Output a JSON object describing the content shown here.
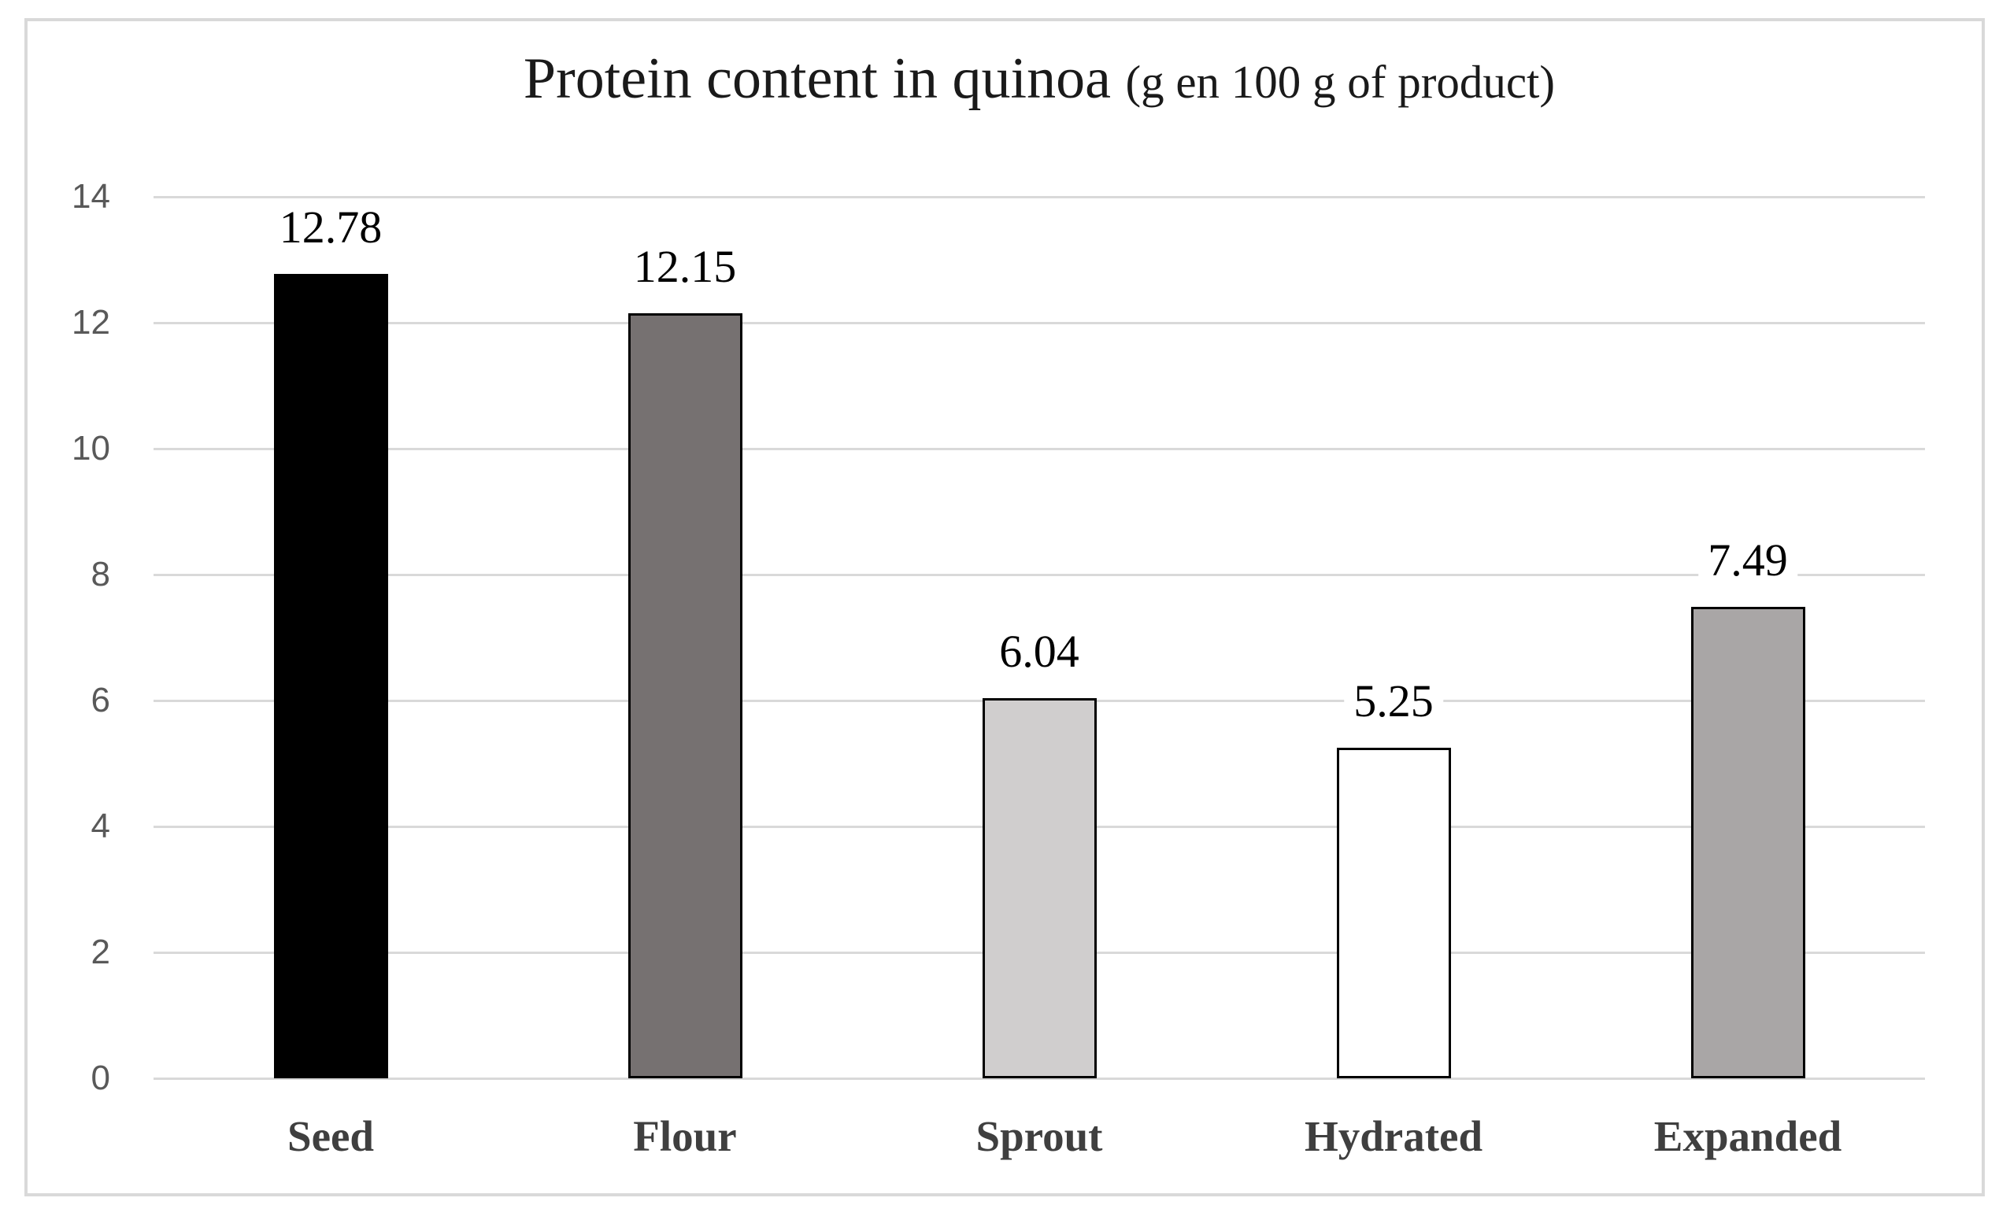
{
  "chart_data": {
    "type": "bar",
    "title_main": "Protein content in quinoa ",
    "title_paren": "(g en 100 g of product)",
    "categories": [
      "Seed",
      "Flour",
      "Sprout",
      "Hydrated",
      "Expanded"
    ],
    "values": [
      12.78,
      12.15,
      6.04,
      5.25,
      7.49
    ],
    "data_labels": [
      "12.78",
      "12.15",
      "6.04",
      "5.25",
      "7.49"
    ],
    "bar_fills": [
      "#000000",
      "#767171",
      "#d0cece",
      "#ffffff",
      "#a9a6a6"
    ],
    "bar_border_color": "#000000",
    "y_ticks": [
      "0",
      "2",
      "4",
      "6",
      "8",
      "10",
      "12",
      "14"
    ],
    "y_tick_values": [
      0,
      2,
      4,
      6,
      8,
      10,
      12,
      14
    ],
    "ylim": [
      0,
      14
    ],
    "xlabel": "",
    "ylabel": "",
    "grid": true,
    "legend": false,
    "gridline_color": "#d9d9d9",
    "tick_label_color": "#595959",
    "category_label_color": "#3f3f3f",
    "frame_border_color": "#d9d9d9",
    "background_color": "#ffffff"
  }
}
